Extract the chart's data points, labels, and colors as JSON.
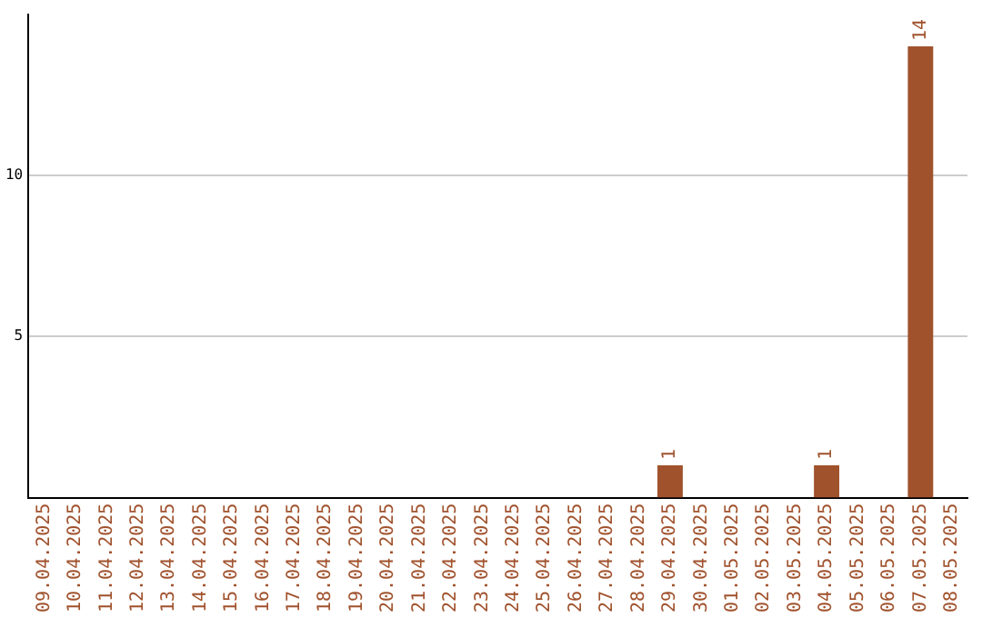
{
  "chart_data": {
    "type": "bar",
    "categories": [
      "09.04.2025",
      "10.04.2025",
      "11.04.2025",
      "12.04.2025",
      "13.04.2025",
      "14.04.2025",
      "15.04.2025",
      "16.04.2025",
      "17.04.2025",
      "18.04.2025",
      "19.04.2025",
      "20.04.2025",
      "21.04.2025",
      "22.04.2025",
      "23.04.2025",
      "24.04.2025",
      "25.04.2025",
      "26.04.2025",
      "27.04.2025",
      "28.04.2025",
      "29.04.2025",
      "30.04.2025",
      "01.05.2025",
      "02.05.2025",
      "03.05.2025",
      "04.05.2025",
      "05.05.2025",
      "06.05.2025",
      "07.05.2025",
      "08.05.2025"
    ],
    "values": [
      0,
      0,
      0,
      0,
      0,
      0,
      0,
      0,
      0,
      0,
      0,
      0,
      0,
      0,
      0,
      0,
      0,
      0,
      0,
      0,
      1,
      0,
      0,
      0,
      0,
      1,
      0,
      0,
      14,
      0
    ],
    "value_labels": [
      null,
      null,
      null,
      null,
      null,
      null,
      null,
      null,
      null,
      null,
      null,
      null,
      null,
      null,
      null,
      null,
      null,
      null,
      null,
      null,
      "1",
      null,
      null,
      null,
      null,
      "1",
      null,
      null,
      "14",
      null
    ],
    "color": "#a0522d",
    "ylim": [
      0,
      15
    ],
    "yticks": [
      5,
      10
    ],
    "grid": "y",
    "legend": false
  }
}
